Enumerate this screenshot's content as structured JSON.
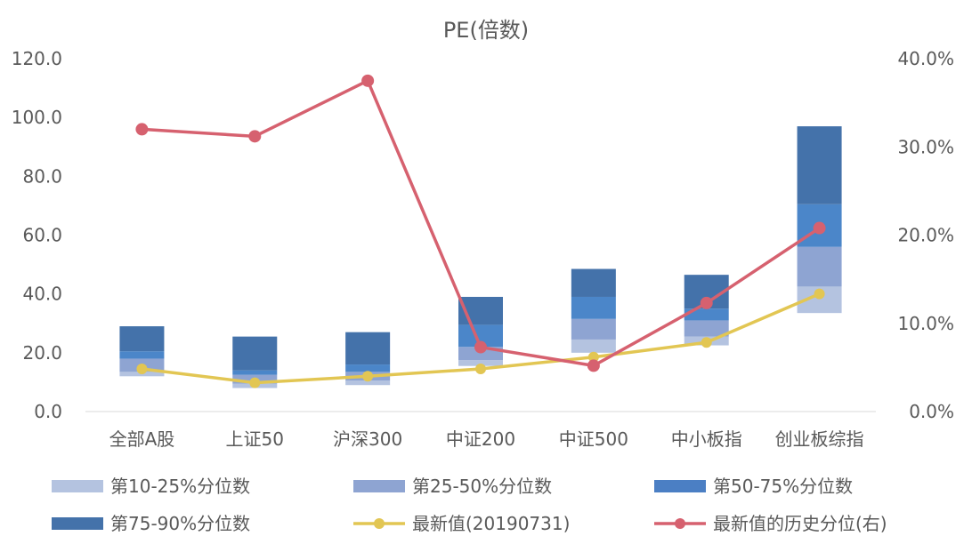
{
  "chart_data": {
    "type": "bar",
    "title": "PE(倍数)",
    "categories": [
      "全部A股",
      "上证50",
      "沪深300",
      "中证200",
      "中证500",
      "中小板指",
      "创业板综指"
    ],
    "y_left": {
      "min": 0,
      "max": 120,
      "ticks": [
        "0.0",
        "20.0",
        "40.0",
        "60.0",
        "80.0",
        "100.0",
        "120.0"
      ]
    },
    "y_right": {
      "min": 0,
      "max": 40,
      "ticks": [
        "0.0%",
        "10.0%",
        "20.0%",
        "30.0%",
        "40.0%"
      ]
    },
    "percentiles": {
      "p10": [
        12.0,
        8.0,
        9.0,
        15.5,
        20.0,
        22.5,
        33.5
      ],
      "p25": [
        13.5,
        9.5,
        10.5,
        17.5,
        24.5,
        25.5,
        42.5
      ],
      "p50": [
        18.0,
        12.5,
        13.5,
        22.0,
        31.5,
        31.0,
        56.0
      ],
      "p75": [
        20.5,
        14.0,
        16.0,
        29.5,
        39.0,
        35.0,
        70.5
      ],
      "p90": [
        29.0,
        25.5,
        27.0,
        39.0,
        48.5,
        46.5,
        97.0
      ]
    },
    "latest_value": [
      14.5,
      9.8,
      12.0,
      14.5,
      18.5,
      23.5,
      40.0
    ],
    "historical_percentile": [
      32.0,
      31.2,
      37.5,
      7.3,
      5.2,
      12.3,
      20.8
    ],
    "series": [
      {
        "name": "第10-25%分位数",
        "color": "#b4c3e0"
      },
      {
        "name": "第25-50%分位数",
        "color": "#8ea4d2"
      },
      {
        "name": "第50-75%分位数",
        "color": "#4b7fc4"
      },
      {
        "name": "第75-90%分位数",
        "color": "#4472aa"
      },
      {
        "name": "最新值(20190731)",
        "color": "#e2c653"
      },
      {
        "name": "最新值的历史分位(右)",
        "color": "#d6616f"
      }
    ],
    "colors": {
      "band_50_75": "#4b86c9"
    }
  }
}
